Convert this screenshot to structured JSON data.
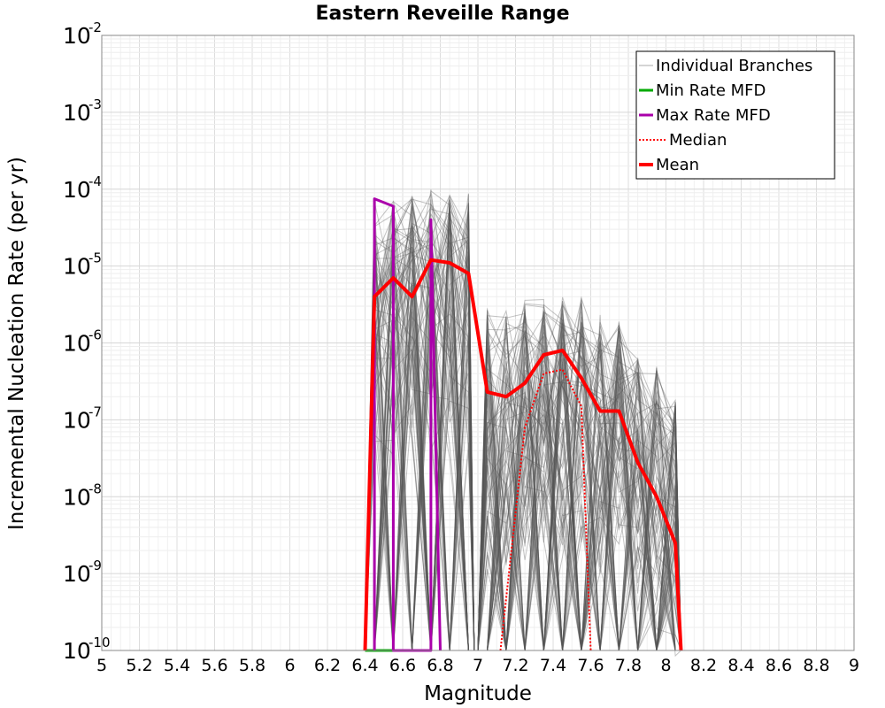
{
  "chart_data": {
    "type": "line",
    "title": "Eastern Reveille Range",
    "xlabel": "Magnitude",
    "ylabel": "Incremental Nucleation Rate (per yr)",
    "xlim": [
      5,
      9
    ],
    "ylim": [
      1e-10,
      0.01
    ],
    "y_scale": "log",
    "grid": true,
    "legend_position": "top-right",
    "x_ticks": [
      "5",
      "5.2",
      "5.4",
      "5.6",
      "5.8",
      "6",
      "6.2",
      "6.4",
      "6.6",
      "6.8",
      "7",
      "7.2",
      "7.4",
      "7.6",
      "7.8",
      "8",
      "8.2",
      "8.4",
      "8.6",
      "8.8",
      "9"
    ],
    "y_tick_exponents": [
      "-10",
      "-9",
      "-8",
      "-7",
      "-6",
      "-5",
      "-4",
      "-3",
      "-2"
    ],
    "y_tick_base": "10",
    "individual_branches_ranges": [
      {
        "x": 6.45,
        "min": 1e-10,
        "max": 8e-05
      },
      {
        "x": 6.55,
        "min": 1e-10,
        "max": 7e-05
      },
      {
        "x": 6.65,
        "min": 1e-10,
        "max": 9e-05
      },
      {
        "x": 6.75,
        "min": 1e-10,
        "max": 0.0001
      },
      {
        "x": 6.85,
        "min": 1e-10,
        "max": 9e-05
      },
      {
        "x": 6.95,
        "min": 1e-10,
        "max": 9e-05
      },
      {
        "x": 7.05,
        "min": 1e-10,
        "max": 3e-06
      },
      {
        "x": 7.15,
        "min": 1e-10,
        "max": 3e-06
      },
      {
        "x": 7.25,
        "min": 1e-10,
        "max": 4e-06
      },
      {
        "x": 7.35,
        "min": 1e-10,
        "max": 4e-06
      },
      {
        "x": 7.45,
        "min": 1e-10,
        "max": 4e-06
      },
      {
        "x": 7.55,
        "min": 1e-10,
        "max": 4e-06
      },
      {
        "x": 7.65,
        "min": 1e-10,
        "max": 2.5e-06
      },
      {
        "x": 7.75,
        "min": 1e-10,
        "max": 2e-06
      },
      {
        "x": 7.85,
        "min": 1e-10,
        "max": 7e-07
      },
      {
        "x": 7.95,
        "min": 1e-10,
        "max": 5e-07
      },
      {
        "x": 8.05,
        "min": 1e-10,
        "max": 2e-07
      }
    ],
    "series": [
      {
        "name": "Individual Branches",
        "color": "#aaaaaa",
        "style": "thin"
      },
      {
        "name": "Min Rate MFD",
        "color": "#00aa00",
        "style": "solid",
        "x": [
          6.4,
          6.45,
          6.55,
          6.6
        ],
        "y": [
          1e-10,
          1e-10,
          1e-10,
          1e-10
        ]
      },
      {
        "name": "Max Rate MFD",
        "color": "#aa00aa",
        "style": "solid",
        "x": [
          6.45,
          6.45,
          6.55,
          6.55,
          6.75,
          6.75,
          6.8
        ],
        "y": [
          1e-10,
          7.5e-05,
          6e-05,
          1e-10,
          1e-10,
          4e-05,
          1e-10
        ]
      },
      {
        "name": "Median",
        "color": "#ff0000",
        "style": "dotted",
        "x": [
          7.12,
          7.25,
          7.35,
          7.45,
          7.55,
          7.6
        ],
        "y": [
          1e-10,
          8e-08,
          4e-07,
          4.5e-07,
          1.5e-07,
          1e-10
        ]
      },
      {
        "name": "Mean",
        "color": "#ff0000",
        "style": "thick",
        "x": [
          6.4,
          6.45,
          6.55,
          6.65,
          6.75,
          6.85,
          6.95,
          7.05,
          7.15,
          7.25,
          7.35,
          7.45,
          7.55,
          7.65,
          7.75,
          7.85,
          7.95,
          8.05,
          8.08
        ],
        "y": [
          1e-10,
          4e-06,
          7e-06,
          4e-06,
          1.2e-05,
          1.1e-05,
          8e-06,
          2.3e-07,
          2e-07,
          3e-07,
          7e-07,
          8e-07,
          3.5e-07,
          1.3e-07,
          1.3e-07,
          2.8e-08,
          1e-08,
          2.5e-09,
          1e-10
        ]
      }
    ]
  }
}
